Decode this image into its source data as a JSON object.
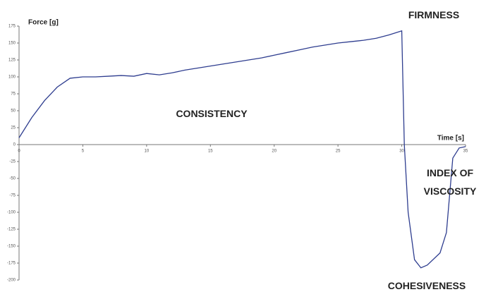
{
  "chart_data": {
    "type": "line",
    "y_label": "Force [g]",
    "x_label": "Time [s]",
    "annotations": [
      "FIRMNESS",
      "CONSISTENCY",
      "INDEX OF VISCOSITY",
      "COHESIVENESS"
    ],
    "x": [
      0,
      1,
      2,
      3,
      4,
      5,
      6,
      7,
      8,
      9,
      10,
      11,
      12,
      13,
      14,
      15,
      16,
      17,
      18,
      19,
      20,
      21,
      22,
      23,
      24,
      25,
      26,
      27,
      28,
      29,
      30,
      30.2,
      30.5,
      31,
      31.5,
      32,
      33,
      33.5,
      34,
      34.5,
      35
    ],
    "values": [
      10,
      40,
      65,
      85,
      98,
      100,
      100,
      101,
      102,
      101,
      105,
      103,
      106,
      110,
      113,
      116,
      119,
      122,
      125,
      128,
      132,
      136,
      140,
      144,
      147,
      150,
      152,
      154,
      157,
      162,
      168,
      0,
      -100,
      -170,
      -182,
      -178,
      -160,
      -130,
      -20,
      -5,
      -3
    ],
    "color": "#2e3d8f",
    "xlim": [
      0,
      35
    ],
    "xticks": [
      0,
      5,
      10,
      15,
      20,
      25,
      30,
      35
    ],
    "ylim": [
      -200,
      175
    ],
    "yticks": [
      -200,
      -175,
      -150,
      -125,
      -100,
      -75,
      -50,
      -25,
      0,
      25,
      50,
      75,
      100,
      125,
      150,
      175
    ],
    "grid": false
  }
}
